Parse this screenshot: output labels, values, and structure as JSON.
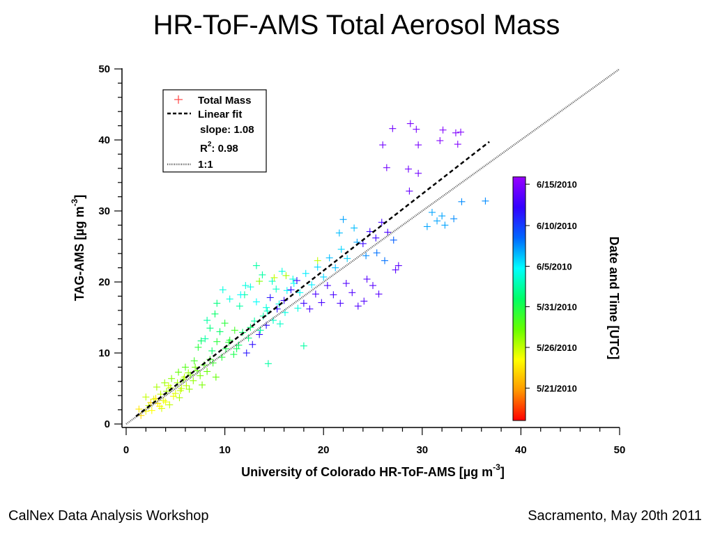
{
  "slide": {
    "title": "HR-ToF-AMS Total Aerosol Mass",
    "footer_left": "CalNex Data Analysis Workshop",
    "footer_right": "Sacramento, May 20th 2011"
  },
  "chart_data": {
    "type": "scatter",
    "title": "HR-ToF-AMS Total Aerosol Mass",
    "xlabel": "University of Colorado HR-ToF-AMS [µg m",
    "xlabel_unit_exponent": "-3",
    "xlabel_close": "]",
    "ylabel": "TAG-AMS [µg m",
    "ylabel_unit_exponent": "-3",
    "ylabel_close": "]",
    "xlim": [
      0,
      50
    ],
    "ylim": [
      0,
      50
    ],
    "x_ticks": [
      "0",
      "10",
      "20",
      "30",
      "40",
      "50"
    ],
    "y_ticks": [
      "0",
      "10",
      "20",
      "30",
      "40",
      "50"
    ],
    "grid": false,
    "marker": "+",
    "legend": {
      "placement": "top-left",
      "entries": {
        "total_mass": "Total Mass",
        "linear_fit": "Linear fit",
        "slope": "slope: 1.08",
        "r2_base": "R",
        "r2_exp": "2",
        "r2_value": ": 0.98",
        "one_to_one": "1:1"
      }
    },
    "fit": {
      "slope": 1.08,
      "intercept": 0,
      "r2": 0.98,
      "x_range": [
        1,
        36.8
      ]
    },
    "one_to_one_range": [
      0,
      50
    ],
    "colorbar": {
      "title": "Date and Time [UTC]",
      "labels": [
        "6/15/2010",
        "6/10/2010",
        "6/5/2010",
        "5/31/2010",
        "5/26/2010",
        "5/21/2010"
      ],
      "label_positions": [
        0.97,
        0.8,
        0.633,
        0.467,
        0.3,
        0.133
      ],
      "colors": [
        "#ff0000",
        "#ff9900",
        "#ffff00",
        "#66ff00",
        "#00ff66",
        "#00ffff",
        "#0066ff",
        "#3300ff",
        "#9900ff"
      ]
    },
    "series": [
      {
        "points": [
          [
            1.5,
            1.2,
            0.2
          ],
          [
            2.0,
            1.8,
            0.25
          ],
          [
            2.3,
            2.6,
            0.3
          ],
          [
            2.8,
            3.5,
            0.28
          ],
          [
            3.2,
            2.9,
            0.22
          ],
          [
            3.5,
            4.2,
            0.3
          ],
          [
            3.8,
            3.3,
            0.27
          ],
          [
            4.1,
            4.6,
            0.32
          ],
          [
            4.5,
            5.1,
            0.3
          ],
          [
            4.8,
            3.9,
            0.26
          ],
          [
            5.2,
            5.8,
            0.33
          ],
          [
            5.5,
            4.7,
            0.3
          ],
          [
            5.8,
            6.3,
            0.35
          ],
          [
            6.1,
            5.4,
            0.31
          ],
          [
            6.5,
            6.9,
            0.36
          ],
          [
            6.8,
            6.1,
            0.34
          ],
          [
            7.2,
            7.5,
            0.38
          ],
          [
            7.5,
            6.8,
            0.36
          ],
          [
            7.9,
            8.3,
            0.4
          ],
          [
            8.2,
            7.4,
            0.38
          ],
          [
            2.5,
            3.0,
            0.2
          ],
          [
            3.0,
            3.6,
            0.22
          ],
          [
            3.4,
            2.5,
            0.24
          ],
          [
            4.0,
            3.1,
            0.26
          ],
          [
            4.3,
            5.4,
            0.29
          ],
          [
            5.0,
            4.3,
            0.28
          ],
          [
            5.6,
            5.0,
            0.3
          ],
          [
            6.3,
            7.2,
            0.34
          ],
          [
            7.0,
            8.0,
            0.37
          ],
          [
            8.5,
            9.1,
            0.42
          ],
          [
            8.0,
            12.0,
            0.55
          ],
          [
            8.5,
            13.5,
            0.52
          ],
          [
            9.0,
            15.5,
            0.5
          ],
          [
            9.2,
            17.0,
            0.52
          ],
          [
            8.2,
            14.6,
            0.55
          ],
          [
            9.5,
            13.0,
            0.5
          ],
          [
            10.0,
            14.2,
            0.45
          ],
          [
            10.4,
            11.5,
            0.45
          ],
          [
            11.0,
            13.2,
            0.42
          ],
          [
            11.5,
            16.6,
            0.55
          ],
          [
            12.0,
            18.2,
            0.55
          ],
          [
            12.6,
            19.3,
            0.6
          ],
          [
            13.2,
            17.2,
            0.62
          ],
          [
            13.8,
            21.0,
            0.55
          ],
          [
            14.2,
            16.4,
            0.6
          ],
          [
            14.8,
            20.1,
            0.58
          ],
          [
            15.2,
            19.0,
            0.58
          ],
          [
            15.8,
            21.5,
            0.6
          ],
          [
            16.3,
            18.8,
            0.62
          ],
          [
            16.9,
            20.4,
            0.6
          ],
          [
            10.5,
            11.8,
            0.45
          ],
          [
            11.2,
            10.6,
            0.48
          ],
          [
            11.8,
            12.9,
            0.5
          ],
          [
            12.4,
            12.1,
            0.52
          ],
          [
            13.0,
            14.5,
            0.55
          ],
          [
            13.6,
            13.2,
            0.55
          ],
          [
            14.3,
            15.9,
            0.57
          ],
          [
            14.9,
            14.6,
            0.58
          ],
          [
            15.5,
            16.9,
            0.6
          ],
          [
            16.1,
            15.7,
            0.6
          ],
          [
            17.0,
            19.8,
            0.62
          ],
          [
            17.6,
            18.5,
            0.62
          ],
          [
            18.2,
            21.2,
            0.64
          ],
          [
            18.8,
            19.6,
            0.64
          ],
          [
            19.4,
            22.1,
            0.66
          ],
          [
            20.0,
            20.7,
            0.66
          ],
          [
            20.6,
            23.4,
            0.68
          ],
          [
            21.2,
            22.0,
            0.68
          ],
          [
            21.8,
            24.6,
            0.66
          ],
          [
            22.4,
            23.3,
            0.66
          ],
          [
            12.2,
            10.0,
            0.85
          ],
          [
            12.8,
            11.2,
            0.86
          ],
          [
            13.5,
            12.6,
            0.87
          ],
          [
            14.2,
            13.9,
            0.86
          ],
          [
            14.6,
            17.8,
            0.85
          ],
          [
            15.3,
            16.2,
            0.86
          ],
          [
            16.0,
            17.4,
            0.88
          ],
          [
            16.7,
            18.9,
            0.87
          ],
          [
            17.3,
            20.2,
            0.88
          ],
          [
            18.0,
            17.0,
            0.88
          ],
          [
            18.6,
            16.2,
            0.9
          ],
          [
            19.2,
            18.3,
            0.9
          ],
          [
            19.8,
            17.1,
            0.9
          ],
          [
            20.4,
            19.5,
            0.9
          ],
          [
            21.0,
            18.2,
            0.9
          ],
          [
            21.7,
            17.0,
            0.9
          ],
          [
            22.3,
            19.8,
            0.91
          ],
          [
            22.9,
            18.5,
            0.91
          ],
          [
            23.5,
            16.6,
            0.91
          ],
          [
            24.1,
            17.3,
            0.91
          ],
          [
            24.0,
            25.4,
            0.88
          ],
          [
            24.7,
            27.1,
            0.88
          ],
          [
            25.3,
            26.2,
            0.88
          ],
          [
            25.9,
            28.4,
            0.9
          ],
          [
            26.5,
            27.0,
            0.9
          ],
          [
            25.0,
            19.5,
            0.92
          ],
          [
            25.6,
            18.3,
            0.92
          ],
          [
            27.3,
            21.7,
            0.92
          ],
          [
            27.6,
            22.3,
            0.92
          ],
          [
            24.4,
            20.4,
            0.92
          ],
          [
            26.0,
            39.3,
            0.95
          ],
          [
            27.0,
            41.6,
            0.95
          ],
          [
            28.8,
            42.3,
            0.96
          ],
          [
            29.4,
            41.5,
            0.96
          ],
          [
            29.6,
            39.3,
            0.96
          ],
          [
            28.6,
            35.9,
            0.95
          ],
          [
            29.6,
            35.3,
            0.95
          ],
          [
            31.8,
            39.9,
            0.97
          ],
          [
            32.1,
            41.4,
            0.97
          ],
          [
            33.4,
            41.0,
            0.97
          ],
          [
            33.9,
            41.1,
            0.97
          ],
          [
            33.6,
            39.4,
            0.97
          ],
          [
            28.7,
            32.8,
            0.94
          ],
          [
            26.4,
            36.1,
            0.95
          ],
          [
            23.4,
            25.6,
            0.7
          ],
          [
            24.3,
            23.7,
            0.72
          ],
          [
            25.4,
            24.1,
            0.74
          ],
          [
            26.2,
            23.0,
            0.74
          ],
          [
            27.1,
            25.9,
            0.76
          ],
          [
            31.0,
            29.8,
            0.7
          ],
          [
            31.5,
            28.6,
            0.7
          ],
          [
            32.0,
            29.3,
            0.7
          ],
          [
            32.3,
            28.0,
            0.7
          ],
          [
            33.2,
            28.9,
            0.72
          ],
          [
            34.0,
            31.3,
            0.72
          ],
          [
            36.4,
            31.4,
            0.72
          ],
          [
            30.5,
            27.8,
            0.7
          ],
          [
            22.0,
            28.8,
            0.7
          ],
          [
            21.6,
            26.9,
            0.68
          ],
          [
            23.1,
            27.6,
            0.68
          ],
          [
            12.1,
            19.5,
            0.6
          ],
          [
            11.6,
            18.2,
            0.62
          ],
          [
            10.5,
            17.6,
            0.6
          ],
          [
            9.8,
            18.9,
            0.6
          ],
          [
            13.2,
            22.3,
            0.55
          ],
          [
            13.5,
            20.1,
            0.35
          ],
          [
            15.0,
            20.6,
            0.3
          ],
          [
            16.2,
            20.9,
            0.32
          ],
          [
            19.4,
            23.0,
            0.3
          ],
          [
            18.0,
            11.0,
            0.55
          ],
          [
            14.4,
            8.5,
            0.55
          ],
          [
            8.7,
            10.3,
            0.5
          ],
          [
            7.6,
            11.7,
            0.5
          ],
          [
            6.9,
            8.9,
            0.42
          ],
          [
            7.3,
            10.8,
            0.45
          ],
          [
            6.0,
            8.0,
            0.4
          ],
          [
            5.3,
            7.3,
            0.38
          ],
          [
            4.6,
            6.4,
            0.35
          ],
          [
            3.9,
            5.8,
            0.33
          ],
          [
            3.1,
            5.2,
            0.32
          ],
          [
            2.0,
            3.8,
            0.3
          ],
          [
            1.3,
            2.1,
            0.22
          ],
          [
            2.6,
            1.9,
            0.25
          ],
          [
            3.6,
            2.2,
            0.28
          ],
          [
            4.4,
            2.7,
            0.3
          ],
          [
            5.4,
            3.7,
            0.32
          ],
          [
            6.4,
            4.9,
            0.34
          ],
          [
            7.7,
            5.5,
            0.36
          ],
          [
            9.1,
            6.6,
            0.38
          ],
          [
            5.9,
            6.6,
            0.3
          ],
          [
            9.7,
            9.4,
            0.45
          ],
          [
            10.1,
            10.6,
            0.47
          ],
          [
            10.9,
            9.8,
            0.47
          ],
          [
            11.4,
            11.1,
            0.5
          ],
          [
            9.2,
            11.6,
            0.45
          ],
          [
            8.8,
            8.6,
            0.43
          ],
          [
            12.6,
            13.6,
            0.5
          ],
          [
            13.9,
            15.2,
            0.55
          ],
          [
            15.6,
            14.1,
            0.58
          ],
          [
            17.4,
            16.3,
            0.6
          ]
        ]
      }
    ]
  }
}
